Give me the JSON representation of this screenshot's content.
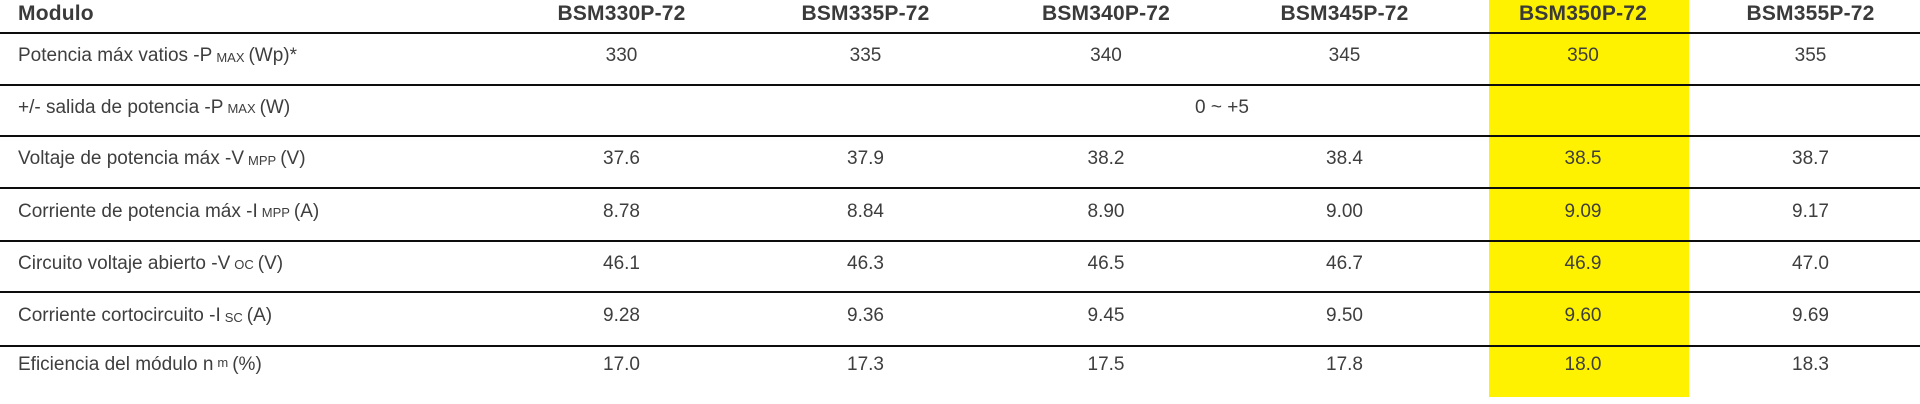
{
  "colors": {
    "highlight_yellow": "#fff200",
    "text_gray": "#3e3e3e",
    "rule_black": "#0d0d0d"
  },
  "table": {
    "header": {
      "label": "Modulo",
      "models": [
        "BSM330P-72",
        "BSM335P-72",
        "BSM340P-72",
        "BSM345P-72",
        "BSM350P-72",
        "BSM355P-72"
      ],
      "highlighted_model": "BSM350P-72"
    },
    "rows": [
      {
        "label_pre": "Potencia máx vatios -P",
        "label_sub": "MAX",
        "label_post": "(Wp)*",
        "values": [
          "330",
          "335",
          "340",
          "345",
          "350",
          "355"
        ]
      },
      {
        "label_pre": "+/- salida de potencia -P",
        "label_sub": "MAX",
        "label_post": "(W)",
        "merged_value": "0 ~ +5"
      },
      {
        "label_pre": "Voltaje de potencia máx -V",
        "label_sub": "MPP",
        "label_post": "(V)",
        "values": [
          "37.6",
          "37.9",
          "38.2",
          "38.4",
          "38.5",
          "38.7"
        ]
      },
      {
        "label_pre": "Corriente de potencia máx -I",
        "label_sub": "MPP",
        "label_post": "(A)",
        "values": [
          "8.78",
          "8.84",
          "8.90",
          "9.00",
          "9.09",
          "9.17"
        ]
      },
      {
        "label_pre": "Circuito voltaje abierto -V",
        "label_sub": "OC",
        "label_post": "(V)",
        "values": [
          "46.1",
          "46.3",
          "46.5",
          "46.7",
          "46.9",
          "47.0"
        ]
      },
      {
        "label_pre": "Corriente cortocircuito -I",
        "label_sub": "SC",
        "label_post": "(A)",
        "values": [
          "9.28",
          "9.36",
          "9.45",
          "9.50",
          "9.60",
          "9.69"
        ]
      },
      {
        "label_pre": "Eficiencia del módulo n",
        "label_sub": "m",
        "label_post": "(%)",
        "values": [
          "17.0",
          "17.3",
          "17.5",
          "17.8",
          "18.0",
          "18.3"
        ]
      }
    ]
  }
}
